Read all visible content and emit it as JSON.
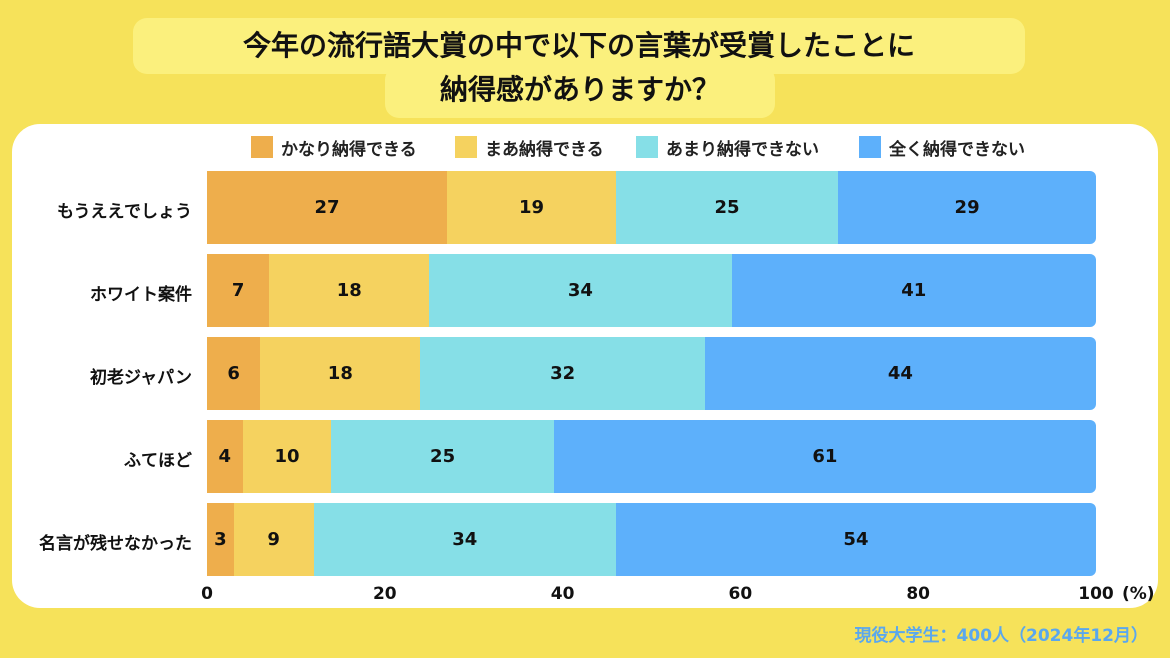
{
  "title": {
    "line1": "今年の流行語大賞の中で以下の言葉が受賞したことに",
    "line2": "納得感がありますか？"
  },
  "note": "現役大学生：400人（2024年12月）",
  "chart_data": {
    "type": "bar",
    "orientation": "horizontal",
    "stacked": true,
    "categories": [
      "もうええでしょう",
      "ホワイト案件",
      "初老ジャパン",
      "ふてほど",
      "名言が残せなかった"
    ],
    "series": [
      {
        "name": "かなり納得できる",
        "color": "#eeae4c",
        "values": [
          27,
          7,
          6,
          4,
          3
        ]
      },
      {
        "name": "まあ納得できる",
        "color": "#f5d25f",
        "values": [
          19,
          18,
          18,
          10,
          9
        ]
      },
      {
        "name": "あまり納得できない",
        "color": "#86dfe7",
        "values": [
          25,
          34,
          32,
          25,
          34
        ]
      },
      {
        "name": "全く納得できない",
        "color": "#5db0fb",
        "values": [
          29,
          41,
          44,
          61,
          54
        ]
      }
    ],
    "xlim": [
      0,
      100
    ],
    "xticks": [
      "0",
      "20",
      "40",
      "60",
      "80",
      "100"
    ],
    "unit": "(%)",
    "legend_position": "top"
  }
}
